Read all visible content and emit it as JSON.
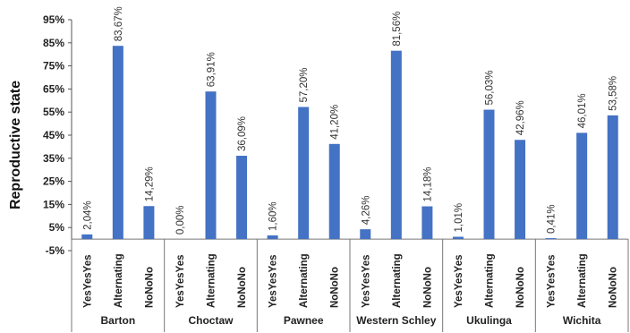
{
  "chart_data": {
    "type": "bar",
    "ylabel": "Reproductive state",
    "ylim": [
      -5,
      95
    ],
    "yticks": [
      "-5%",
      "5%",
      "15%",
      "25%",
      "35%",
      "45%",
      "55%",
      "65%",
      "75%",
      "85%",
      "95%"
    ],
    "ytick_values": [
      -5,
      5,
      15,
      25,
      35,
      45,
      55,
      65,
      75,
      85,
      95
    ],
    "grid": false,
    "bar_color": "#4472C4",
    "groups": [
      {
        "name": "Barton",
        "bars": [
          {
            "category": "YesYesYes",
            "value": 2.04,
            "label": "2,04%"
          },
          {
            "category": "Alternating",
            "value": 83.67,
            "label": "83,67%"
          },
          {
            "category": "NoNoNo",
            "value": 14.29,
            "label": "14,29%"
          }
        ]
      },
      {
        "name": "Choctaw",
        "bars": [
          {
            "category": "YesYesYes",
            "value": 0.0,
            "label": "0,00%"
          },
          {
            "category": "Alternating",
            "value": 63.91,
            "label": "63,91%"
          },
          {
            "category": "NoNoNo",
            "value": 36.09,
            "label": "36,09%"
          }
        ]
      },
      {
        "name": "Pawnee",
        "bars": [
          {
            "category": "YesYesYes",
            "value": 1.6,
            "label": "1,60%"
          },
          {
            "category": "Alternating",
            "value": 57.2,
            "label": "57,20%"
          },
          {
            "category": "NoNoNo",
            "value": 41.2,
            "label": "41,20%"
          }
        ]
      },
      {
        "name": "Western Schley",
        "bars": [
          {
            "category": "YesYesYes",
            "value": 4.26,
            "label": "4,26%"
          },
          {
            "category": "Alternating",
            "value": 81.56,
            "label": "81,56%"
          },
          {
            "category": "NoNoNo",
            "value": 14.18,
            "label": "14,18%"
          }
        ]
      },
      {
        "name": "Ukulinga",
        "bars": [
          {
            "category": "YesYesYes",
            "value": 1.01,
            "label": "1,01%"
          },
          {
            "category": "Alternating",
            "value": 56.03,
            "label": "56,03%"
          },
          {
            "category": "NoNoNo",
            "value": 42.96,
            "label": "42,96%"
          }
        ]
      },
      {
        "name": "Wichita",
        "bars": [
          {
            "category": "YesYesYes",
            "value": 0.41,
            "label": "0,41%"
          },
          {
            "category": "Alternating",
            "value": 46.01,
            "label": "46,01%"
          },
          {
            "category": "NoNoNo",
            "value": 53.58,
            "label": "53,58%"
          }
        ]
      }
    ]
  }
}
